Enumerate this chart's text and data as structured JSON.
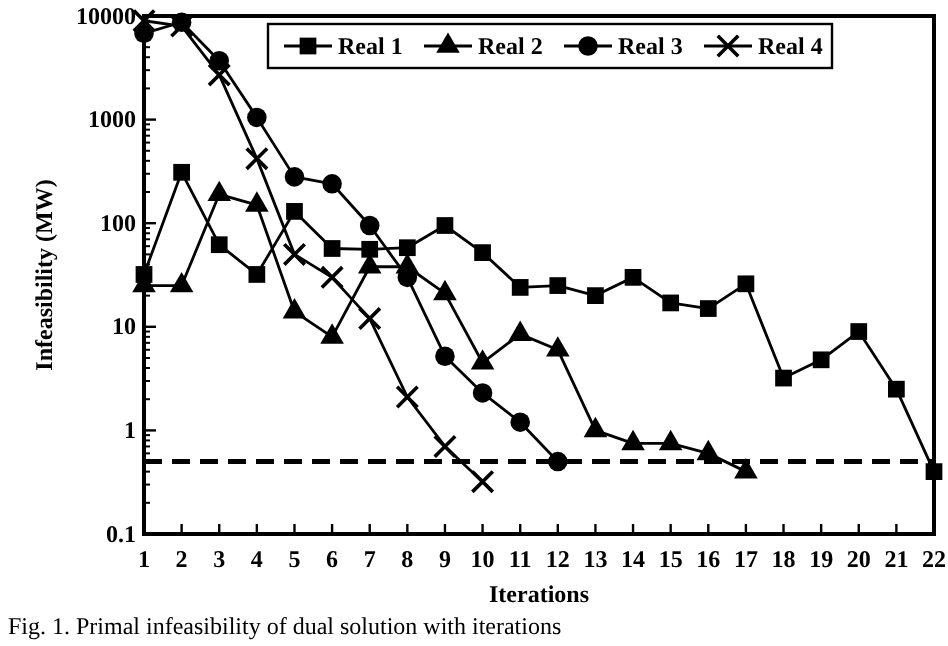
{
  "chart_data": {
    "type": "line",
    "xlabel": "Iterations",
    "ylabel": "Infeasibility (MW)",
    "log": "y",
    "x": [
      1,
      2,
      3,
      4,
      5,
      6,
      7,
      8,
      9,
      10,
      11,
      12,
      13,
      14,
      15,
      16,
      17,
      18,
      19,
      20,
      21,
      22
    ],
    "xlim": [
      1,
      22
    ],
    "xticks": [
      1,
      2,
      3,
      4,
      5,
      6,
      7,
      8,
      9,
      10,
      11,
      12,
      13,
      14,
      15,
      16,
      17,
      18,
      19,
      20,
      21,
      22
    ],
    "ylim": [
      0.1,
      10000
    ],
    "yticks": [
      0.1,
      1,
      10,
      100,
      1000,
      10000
    ],
    "grid": false,
    "legend": "top",
    "line_style": "solid",
    "series": [
      {
        "name": "Real 1",
        "color": "#000000",
        "marker": "square",
        "values": [
          32,
          310,
          62,
          32,
          130,
          57,
          56,
          58,
          95,
          52,
          24,
          25,
          20,
          30,
          17,
          15,
          26,
          3.2,
          4.8,
          9,
          2.5,
          0.4
        ]
      },
      {
        "name": "Real 2",
        "color": "#000000",
        "marker": "triangle",
        "values": [
          25,
          25,
          190,
          150,
          14,
          8,
          38,
          38,
          21,
          4.5,
          8.5,
          6,
          1.0,
          0.75,
          0.75,
          0.6,
          0.4,
          null,
          null,
          null,
          null,
          null
        ]
      },
      {
        "name": "Real 3",
        "color": "#000000",
        "marker": "circle",
        "values": [
          6800,
          8700,
          3700,
          1050,
          280,
          240,
          95,
          30,
          5.2,
          2.3,
          1.2,
          0.5,
          null,
          null,
          null,
          null,
          null,
          null,
          null,
          null,
          null,
          null
        ]
      },
      {
        "name": "Real 4",
        "color": "#000000",
        "marker": "cross",
        "values": [
          9000,
          8000,
          2700,
          420,
          50,
          30,
          12,
          2.1,
          0.7,
          0.32,
          null,
          null,
          null,
          null,
          null,
          null,
          null,
          null,
          null,
          null,
          null,
          null
        ]
      }
    ],
    "ref_lines": [
      {
        "axis": "y",
        "value": 0.5,
        "line_style": "dashed",
        "color": "#000000"
      }
    ],
    "annotations": [
      "Fig. 1.  Primal infeasibility of dual solution with iterations"
    ]
  }
}
